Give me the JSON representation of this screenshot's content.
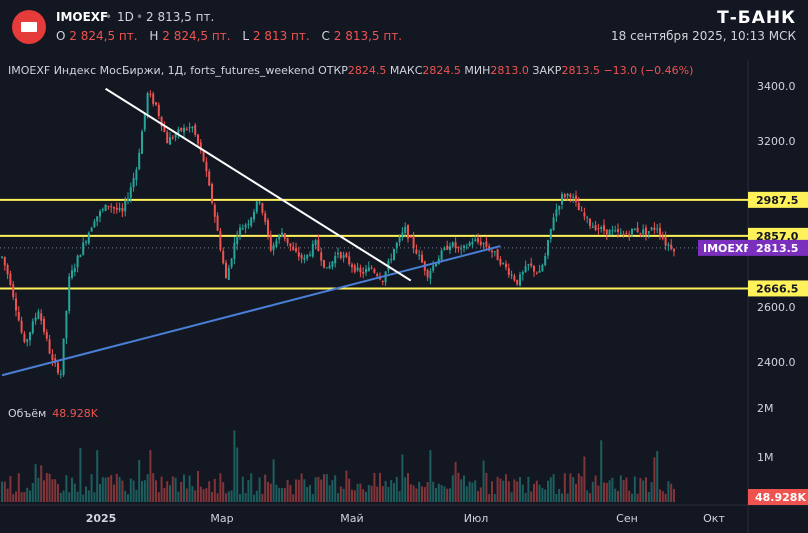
{
  "header": {
    "ticker": "IMOEXF",
    "interval": "1D",
    "price": "2 813,5 пт.",
    "ohlc": [
      {
        "k": "O",
        "v": "2 824,5 пт."
      },
      {
        "k": "H",
        "v": "2 824,5 пт."
      },
      {
        "k": "L",
        "v": "2 813 пт."
      },
      {
        "k": "C",
        "v": "2 813,5 пт."
      }
    ],
    "brand": "Т-БАНК",
    "timestamp": "18 сентября 2025, 10:13 МСК"
  },
  "legend": {
    "name": "IMOEXF Индекс МосБиржи, 1Д, forts_futures_weekend",
    "open_label": "ОТКР",
    "open": "2824.5",
    "high_label": "МАКС",
    "high": "2824.5",
    "low_label": "МИН",
    "low": "2813.0",
    "close_label": "ЗАКР",
    "close": "2813.5",
    "change": "−13.0 (−0.46%)"
  },
  "volume": {
    "label": "Объём",
    "value": "48.928K",
    "tag": "48.928K"
  },
  "colors": {
    "up": "#26a69a",
    "down": "#ef5350",
    "level": "#fff159",
    "trend_up": "#4a7fd6",
    "trend_down": "#ffffff",
    "price_tag": "#7b2fbe",
    "background": "#131722"
  },
  "chart_data": {
    "type": "candlestick",
    "x_ticks": [
      "2025",
      "Мар",
      "Май",
      "Июл",
      "Сен",
      "Окт"
    ],
    "y_ticks": [
      "3400.0",
      "3200.0",
      "2600.0",
      "2400.0"
    ],
    "volume_ticks": [
      "2M",
      "1M"
    ],
    "ylim": [
      2330,
      3440
    ],
    "levels": [
      {
        "value": 2987.5,
        "label": "2987.5"
      },
      {
        "value": 2857.0,
        "label": "2857.0"
      },
      {
        "value": 2666.5,
        "label": "2666.5"
      }
    ],
    "last_price": {
      "symbol": "IMOEXF",
      "value": 2813.5,
      "label": "2813.5"
    },
    "trendlines": [
      {
        "name": "support",
        "from": [
          0,
          2352
        ],
        "to": [
          178,
          2820
        ]
      },
      {
        "name": "resistance",
        "from": [
          37,
          3390
        ],
        "to": [
          146,
          2695
        ]
      }
    ],
    "anchors": [
      [
        0,
        2780
      ],
      [
        3,
        2690
      ],
      [
        8,
        2460
      ],
      [
        13,
        2590
      ],
      [
        18,
        2400
      ],
      [
        21,
        2360
      ],
      [
        24,
        2700
      ],
      [
        28,
        2800
      ],
      [
        33,
        2920
      ],
      [
        38,
        2970
      ],
      [
        43,
        2940
      ],
      [
        48,
        3100
      ],
      [
        52,
        3370
      ],
      [
        55,
        3330
      ],
      [
        59,
        3200
      ],
      [
        64,
        3240
      ],
      [
        68,
        3250
      ],
      [
        72,
        3130
      ],
      [
        76,
        2930
      ],
      [
        80,
        2700
      ],
      [
        84,
        2870
      ],
      [
        88,
        2910
      ],
      [
        92,
        2990
      ],
      [
        96,
        2810
      ],
      [
        100,
        2870
      ],
      [
        104,
        2800
      ],
      [
        108,
        2770
      ],
      [
        112,
        2830
      ],
      [
        116,
        2730
      ],
      [
        120,
        2800
      ],
      [
        124,
        2760
      ],
      [
        128,
        2720
      ],
      [
        132,
        2740
      ],
      [
        136,
        2700
      ],
      [
        140,
        2810
      ],
      [
        144,
        2880
      ],
      [
        148,
        2800
      ],
      [
        152,
        2720
      ],
      [
        156,
        2780
      ],
      [
        160,
        2830
      ],
      [
        164,
        2800
      ],
      [
        168,
        2840
      ],
      [
        172,
        2830
      ],
      [
        176,
        2790
      ],
      [
        180,
        2740
      ],
      [
        184,
        2690
      ],
      [
        188,
        2750
      ],
      [
        192,
        2720
      ],
      [
        194,
        2780
      ],
      [
        197,
        2930
      ],
      [
        200,
        3000
      ],
      [
        203,
        3010
      ],
      [
        206,
        2950
      ],
      [
        210,
        2900
      ],
      [
        214,
        2880
      ],
      [
        218,
        2870
      ],
      [
        222,
        2860
      ],
      [
        226,
        2880
      ],
      [
        230,
        2870
      ],
      [
        234,
        2890
      ],
      [
        237,
        2830
      ],
      [
        240,
        2813.5
      ]
    ]
  }
}
